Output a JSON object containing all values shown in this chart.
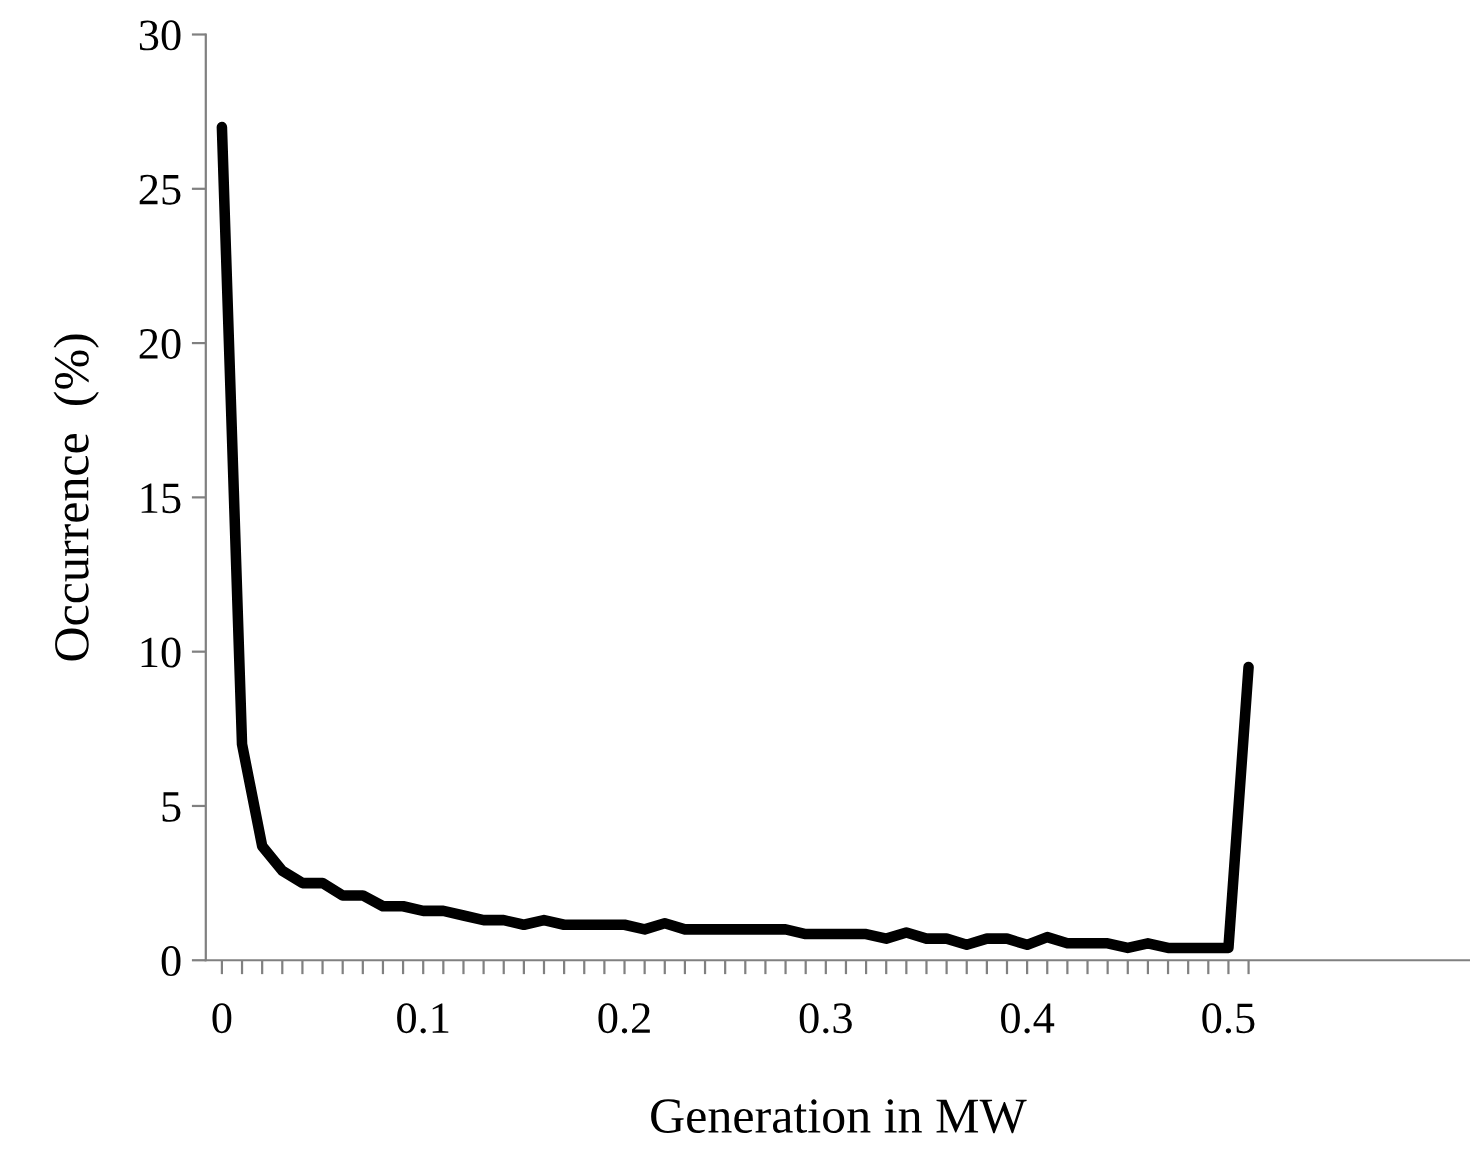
{
  "chart_data": {
    "type": "line",
    "xlabel": "Generation in MW",
    "ylabel": "Occurrence  (%)",
    "categories": [
      "0",
      null,
      null,
      null,
      null,
      null,
      null,
      null,
      null,
      null,
      "0.1",
      null,
      null,
      null,
      null,
      null,
      null,
      null,
      null,
      null,
      "0.2",
      null,
      null,
      null,
      null,
      null,
      null,
      null,
      null,
      null,
      "0.3",
      null,
      null,
      null,
      null,
      null,
      null,
      null,
      null,
      null,
      "0.4",
      null,
      null,
      null,
      null,
      null,
      null,
      null,
      null,
      null,
      "0.5",
      null
    ],
    "series": [
      {
        "color": "#000000",
        "values": [
          27,
          7,
          3.7,
          2.9,
          2.5,
          2.5,
          2.1,
          2.1,
          1.75,
          1.75,
          1.6,
          1.6,
          1.45,
          1.3,
          1.3,
          1.15,
          1.3,
          1.15,
          1.15,
          1.15,
          1.15,
          1.0,
          1.2,
          1.0,
          1.0,
          1.0,
          1.0,
          1.0,
          1.0,
          0.85,
          0.85,
          0.85,
          0.85,
          0.7,
          0.9,
          0.7,
          0.7,
          0.5,
          0.7,
          0.7,
          0.5,
          0.75,
          0.55,
          0.55,
          0.55,
          0.4,
          0.55,
          0.4,
          0.4,
          0.4,
          0.4,
          9.5
        ]
      }
    ],
    "ylim": [
      0,
      30
    ],
    "yticks": [
      0,
      5,
      10,
      15,
      20,
      25,
      30
    ],
    "grid": false,
    "legend": false,
    "marker": "none",
    "line_style": "solid"
  }
}
